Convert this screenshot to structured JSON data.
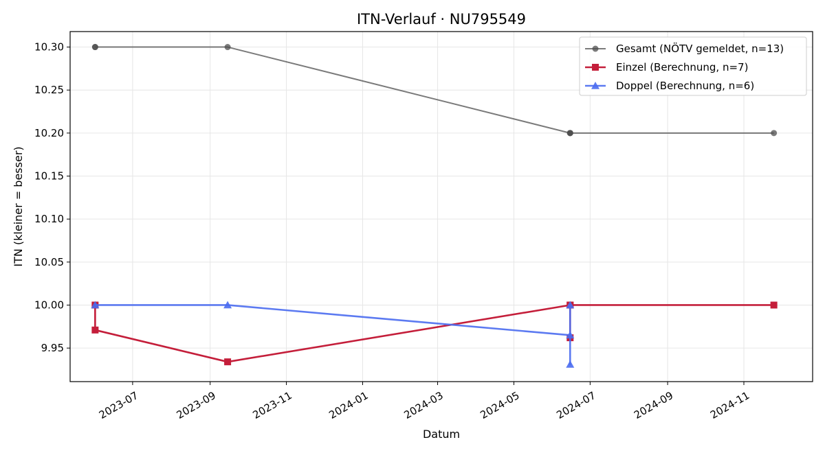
{
  "chart_data": {
    "type": "line",
    "title": "ITN-Verlauf · NU795549",
    "xlabel": "Datum",
    "ylabel": "ITN  (kleiner = besser)",
    "x_ticks": [
      "2023-07",
      "2023-09",
      "2023-11",
      "2024-01",
      "2024-03",
      "2024-05",
      "2024-07",
      "2024-09",
      "2024-11"
    ],
    "y_ticks": [
      "9.95",
      "10.00",
      "10.05",
      "10.10",
      "10.15",
      "10.20",
      "10.25",
      "10.30"
    ],
    "xlim": [
      "2023-05-12",
      "2024-12-26"
    ],
    "ylim": [
      9.911,
      10.318
    ],
    "grid": true,
    "legend_position": "top-right",
    "series": [
      {
        "name": "Gesamt (NÖTV gemeldet, n=13)",
        "color": "#4d4d4d",
        "marker": "circle",
        "points": [
          {
            "x": "2023-06-01",
            "y": 10.3
          },
          {
            "x": "2023-06-01",
            "y": 10.3
          },
          {
            "x": "2023-09-15",
            "y": 10.3
          },
          {
            "x": "2024-06-15",
            "y": 10.2
          },
          {
            "x": "2024-06-15",
            "y": 10.2
          },
          {
            "x": "2024-06-15",
            "y": 10.2
          },
          {
            "x": "2024-11-25",
            "y": 10.2
          }
        ]
      },
      {
        "name": "Einzel (Berechnung, n=7)",
        "color": "#c41e3a",
        "marker": "square",
        "points": [
          {
            "x": "2023-06-01",
            "y": 10.0
          },
          {
            "x": "2023-06-01",
            "y": 9.971
          },
          {
            "x": "2023-09-15",
            "y": 9.934
          },
          {
            "x": "2024-06-15",
            "y": 10.0
          },
          {
            "x": "2024-06-15",
            "y": 9.962
          },
          {
            "x": "2024-06-15",
            "y": 10.0
          },
          {
            "x": "2024-11-25",
            "y": 10.0
          }
        ]
      },
      {
        "name": "Doppel (Berechnung, n=6)",
        "color": "#4a6cf0",
        "marker": "triangle",
        "points": [
          {
            "x": "2023-06-01",
            "y": 10.0
          },
          {
            "x": "2023-09-15",
            "y": 10.0
          },
          {
            "x": "2024-06-15",
            "y": 9.965
          },
          {
            "x": "2024-06-15",
            "y": 9.931
          },
          {
            "x": "2024-06-15",
            "y": 10.0
          }
        ]
      }
    ]
  }
}
